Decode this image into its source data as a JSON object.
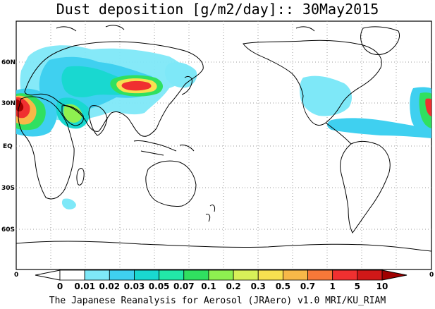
{
  "title": "Dust deposition [g/m2/day]:: 30May2015",
  "credit": "The Japanese Reanalysis for Aerosol (JRAero) v1.0 MRI/KU_RIAM",
  "latitude_labels": [
    "60N",
    "30N",
    "EQ",
    "30S",
    "60S"
  ],
  "longitude_labels": {
    "left": "0",
    "right": "0"
  },
  "colorbar": {
    "tick_labels": [
      "0",
      "0.01",
      "0.02",
      "0.03",
      "0.05",
      "0.07",
      "0.1",
      "0.2",
      "0.3",
      "0.5",
      "0.7",
      "1",
      "5",
      "10"
    ],
    "colors": [
      "#ffffff",
      "#ffffff",
      "#7ee8f8",
      "#3fd0f0",
      "#19d8d0",
      "#22e8a8",
      "#30e060",
      "#8ef050",
      "#d8f058",
      "#f8e050",
      "#f8b848",
      "#f87838",
      "#f03030",
      "#d01818",
      "#a00000"
    ]
  },
  "map_colors": {
    "coast": "#000000",
    "grid": "#999999"
  }
}
